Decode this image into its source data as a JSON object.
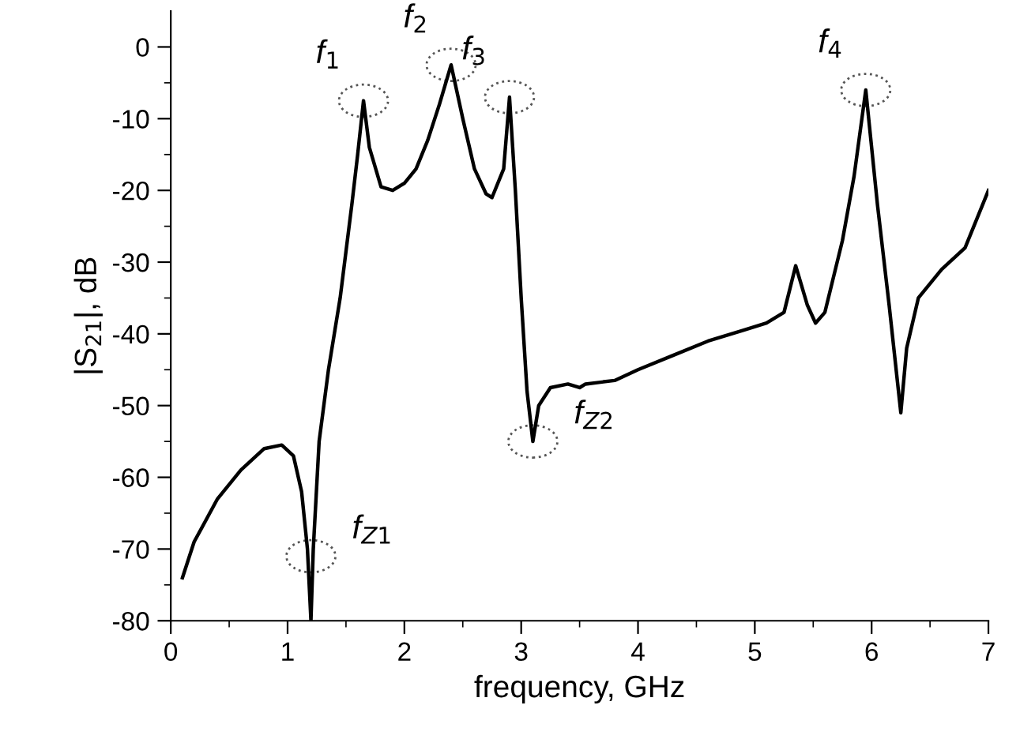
{
  "chart_data": {
    "type": "line",
    "xlabel": "frequency, GHz",
    "ylabel": "|S$_{21}$|, dB",
    "x": [
      0.1,
      0.2,
      0.4,
      0.6,
      0.8,
      0.95,
      1.05,
      1.12,
      1.17,
      1.2,
      1.22,
      1.27,
      1.35,
      1.45,
      1.55,
      1.6,
      1.65,
      1.7,
      1.8,
      1.9,
      2.0,
      2.1,
      2.2,
      2.3,
      2.4,
      2.5,
      2.6,
      2.7,
      2.75,
      2.85,
      2.9,
      2.95,
      3.0,
      3.05,
      3.1,
      3.15,
      3.25,
      3.4,
      3.5,
      3.55,
      3.8,
      4.0,
      4.3,
      4.6,
      4.9,
      5.1,
      5.25,
      5.35,
      5.45,
      5.52,
      5.6,
      5.75,
      5.85,
      5.95,
      6.05,
      6.15,
      6.25,
      6.3,
      6.4,
      6.6,
      6.8,
      6.95,
      7.0
    ],
    "series": [
      {
        "color": "#000000",
        "values": [
          -74,
          -69,
          -63,
          -59,
          -56,
          -55.5,
          -57,
          -62,
          -70,
          -80,
          -70,
          -55,
          -45,
          -35,
          -22,
          -15,
          -7.5,
          -14,
          -19.5,
          -20,
          -19,
          -17,
          -13,
          -8,
          -2.5,
          -10,
          -17,
          -20.5,
          -21,
          -17,
          -7,
          -20,
          -35,
          -48,
          -55,
          -50,
          -47.5,
          -47,
          -47.5,
          -47,
          -46.5,
          -45,
          -43,
          -41,
          -39.5,
          -38.5,
          -37,
          -30.5,
          -36,
          -38.5,
          -37,
          -27,
          -18,
          -6,
          -22,
          -36,
          -51,
          -42,
          -35,
          -31,
          -28,
          -22,
          -20
        ]
      }
    ],
    "xlim": [
      0,
      7
    ],
    "ylim": [
      -80,
      5
    ],
    "xticks": [
      0,
      {
        "value": 0.5,
        "label": null
      },
      1,
      {
        "value": 1.5,
        "label": null
      },
      2,
      {
        "value": 2.5,
        "label": null
      },
      3,
      {
        "value": 3.5,
        "label": null
      },
      4,
      {
        "value": 4.5,
        "label": null
      },
      5,
      {
        "value": 5.5,
        "label": null
      },
      6,
      {
        "value": 6.5,
        "label": null
      },
      7
    ],
    "yticks": [
      -80,
      {
        "value": -75,
        "label": null
      },
      -70,
      {
        "value": -65,
        "label": null
      },
      -60,
      {
        "value": -55,
        "label": null
      },
      -50,
      {
        "value": -45,
        "label": null
      },
      -40,
      {
        "value": -35,
        "label": null
      },
      -30,
      {
        "value": -25,
        "label": null
      },
      -20,
      {
        "value": -15,
        "label": null
      },
      -10,
      {
        "value": -5,
        "label": null
      },
      0
    ],
    "annotations": [
      {
        "text": "f$_{1}$",
        "x": 1.65,
        "y": -7.5
      },
      {
        "text": "f$_{2}$",
        "x": 2.4,
        "y": -2.5
      },
      {
        "text": "f$_{3}$",
        "x": 2.9,
        "y": -7
      },
      {
        "text": "f$_{4}$",
        "x": 5.95,
        "y": -6
      },
      {
        "text": "f$_{Z1}$",
        "x": 1.2,
        "y": -71
      },
      {
        "text": "f$_{Z2}$",
        "x": 3.1,
        "y": -55
      }
    ],
    "grid": false,
    "legend": false,
    "marker": "none",
    "line_style": "solid"
  }
}
